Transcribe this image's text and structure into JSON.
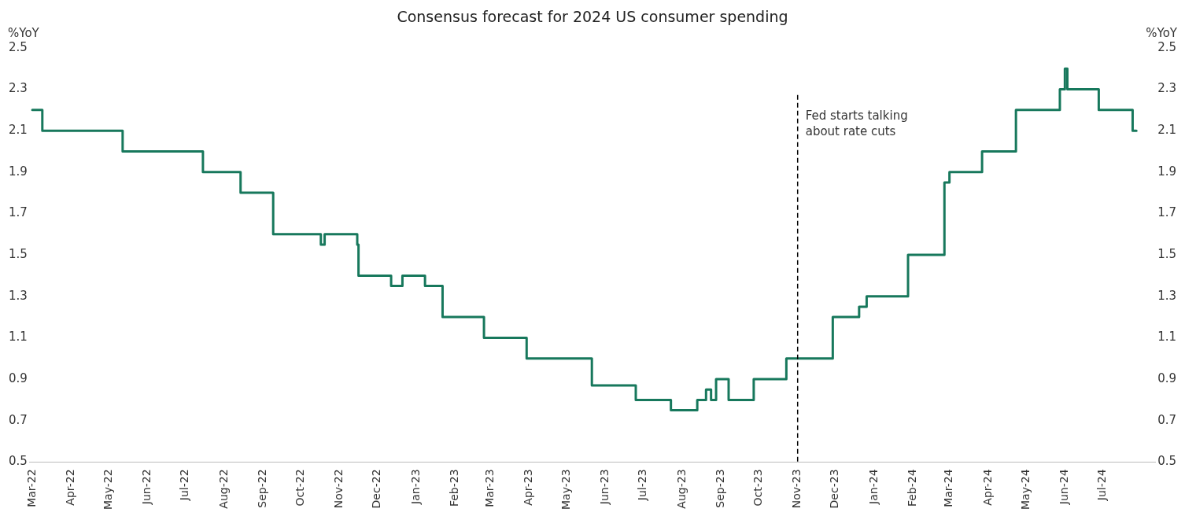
{
  "chart_data": {
    "type": "step",
    "title": "Consensus forecast for 2024 US consumer spending",
    "ylabel": "%YoY",
    "y2label": "%YoY",
    "x": [
      "2022-03-01",
      "2022-03-09",
      "2022-05-12",
      "2022-07-15",
      "2022-08-14",
      "2022-09-09",
      "2022-10-17",
      "2022-10-20",
      "2022-11-15",
      "2022-11-16",
      "2022-12-12",
      "2022-12-21",
      "2023-01-08",
      "2023-01-22",
      "2023-02-24",
      "2023-03-30",
      "2023-05-21",
      "2023-06-25",
      "2023-07-23",
      "2023-08-13",
      "2023-08-20",
      "2023-08-24",
      "2023-08-28",
      "2023-09-07",
      "2023-09-27",
      "2023-10-23",
      "2023-11-29",
      "2023-12-20",
      "2023-12-26",
      "2024-01-28",
      "2024-02-26",
      "2024-03-01",
      "2024-03-27",
      "2024-04-23",
      "2024-05-28",
      "2024-06-01",
      "2024-06-03",
      "2024-06-28",
      "2024-07-25",
      "2024-07-28"
    ],
    "series": [
      {
        "color": "#17785c",
        "values": [
          2.2,
          2.1,
          2.0,
          1.9,
          1.8,
          1.6,
          1.55,
          1.6,
          1.55,
          1.4,
          1.35,
          1.4,
          1.35,
          1.2,
          1.1,
          1.0,
          0.87,
          0.8,
          0.75,
          0.8,
          0.85,
          0.8,
          0.9,
          0.8,
          0.9,
          1.0,
          1.2,
          1.25,
          1.3,
          1.5,
          1.85,
          1.9,
          2.0,
          2.2,
          2.3,
          2.4,
          2.3,
          2.2,
          2.1,
          2.1
        ]
      }
    ],
    "xlim": [
      "2022-02-27",
      "2024-08-12"
    ],
    "xticks": [
      {
        "value": "2022-03-01",
        "label": "Mar-22"
      },
      {
        "value": "2022-04-01",
        "label": "Apr-22"
      },
      {
        "value": "2022-05-01",
        "label": "May-22"
      },
      {
        "value": "2022-06-01",
        "label": "Jun-22"
      },
      {
        "value": "2022-07-01",
        "label": "Jul-22"
      },
      {
        "value": "2022-08-01",
        "label": "Aug-22"
      },
      {
        "value": "2022-09-01",
        "label": "Sep-22"
      },
      {
        "value": "2022-10-01",
        "label": "Oct-22"
      },
      {
        "value": "2022-11-01",
        "label": "Nov-22"
      },
      {
        "value": "2022-12-01",
        "label": "Dec-22"
      },
      {
        "value": "2023-01-01",
        "label": "Jan-23"
      },
      {
        "value": "2023-02-01",
        "label": "Feb-23"
      },
      {
        "value": "2023-03-01",
        "label": "Mar-23"
      },
      {
        "value": "2023-04-01",
        "label": "Apr-23"
      },
      {
        "value": "2023-05-01",
        "label": "May-23"
      },
      {
        "value": "2023-06-01",
        "label": "Jun-23"
      },
      {
        "value": "2023-07-01",
        "label": "Jul-23"
      },
      {
        "value": "2023-08-01",
        "label": "Aug-23"
      },
      {
        "value": "2023-09-01",
        "label": "Sep-23"
      },
      {
        "value": "2023-10-01",
        "label": "Oct-23"
      },
      {
        "value": "2023-11-01",
        "label": "Nov-23"
      },
      {
        "value": "2023-12-01",
        "label": "Dec-23"
      },
      {
        "value": "2024-01-01",
        "label": "Jan-24"
      },
      {
        "value": "2024-02-01",
        "label": "Feb-24"
      },
      {
        "value": "2024-03-01",
        "label": "Mar-24"
      },
      {
        "value": "2024-04-01",
        "label": "Apr-24"
      },
      {
        "value": "2024-05-01",
        "label": "May-24"
      },
      {
        "value": "2024-06-01",
        "label": "Jun-24"
      },
      {
        "value": "2024-07-01",
        "label": "Jul-24"
      }
    ],
    "ylim": [
      0.5,
      2.5
    ],
    "yticks": [
      0.5,
      0.7,
      0.9,
      1.1,
      1.3,
      1.5,
      1.7,
      1.9,
      2.1,
      2.3,
      2.5
    ],
    "y2lim": [
      0.5,
      2.5
    ],
    "y2ticks": [
      0.5,
      0.7,
      0.9,
      1.1,
      1.3,
      1.5,
      1.7,
      1.9,
      2.1,
      2.3,
      2.5
    ],
    "ref_lines": [
      {
        "axis": "x",
        "value": "2023-11-01",
        "label": "Fed starts talking about rate cuts",
        "color": "#000000",
        "line_style": "dashed"
      }
    ],
    "grid": false,
    "legend": false,
    "marker": "none",
    "line_style": "solid"
  }
}
